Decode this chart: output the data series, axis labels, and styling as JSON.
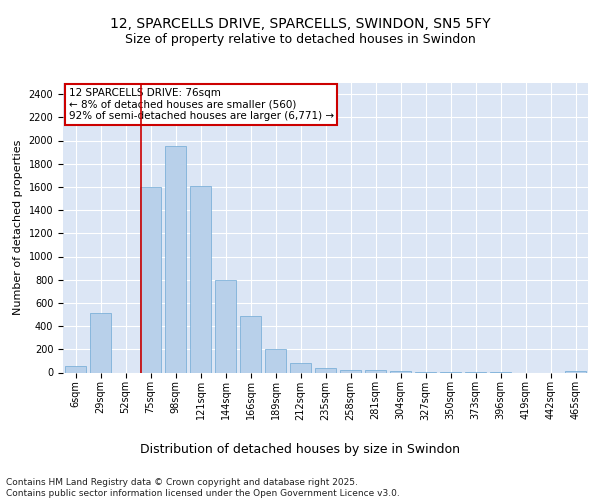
{
  "title_line1": "12, SPARCELLS DRIVE, SPARCELLS, SWINDON, SN5 5FY",
  "title_line2": "Size of property relative to detached houses in Swindon",
  "xlabel": "Distribution of detached houses by size in Swindon",
  "ylabel": "Number of detached properties",
  "categories": [
    "6sqm",
    "29sqm",
    "52sqm",
    "75sqm",
    "98sqm",
    "121sqm",
    "144sqm",
    "166sqm",
    "189sqm",
    "212sqm",
    "235sqm",
    "258sqm",
    "281sqm",
    "304sqm",
    "327sqm",
    "350sqm",
    "373sqm",
    "396sqm",
    "419sqm",
    "442sqm",
    "465sqm"
  ],
  "values": [
    55,
    510,
    0,
    1600,
    1950,
    1610,
    800,
    490,
    200,
    85,
    40,
    25,
    18,
    10,
    5,
    3,
    2,
    1,
    0,
    0,
    15
  ],
  "bar_color": "#b8d0ea",
  "bar_edge_color": "#6ea8d5",
  "background_color": "#dce6f5",
  "grid_color": "#ffffff",
  "vline_color": "#cc0000",
  "vline_x_index": 2.6,
  "annotation_text": "12 SPARCELLS DRIVE: 76sqm\n← 8% of detached houses are smaller (560)\n92% of semi-detached houses are larger (6,771) →",
  "annotation_box_facecolor": "#ffffff",
  "annotation_box_edgecolor": "#cc0000",
  "ylim": [
    0,
    2500
  ],
  "yticks": [
    0,
    200,
    400,
    600,
    800,
    1000,
    1200,
    1400,
    1600,
    1800,
    2000,
    2200,
    2400
  ],
  "footnote": "Contains HM Land Registry data © Crown copyright and database right 2025.\nContains public sector information licensed under the Open Government Licence v3.0.",
  "title_fontsize": 10,
  "subtitle_fontsize": 9,
  "xlabel_fontsize": 9,
  "ylabel_fontsize": 8,
  "tick_fontsize": 7,
  "annotation_fontsize": 7.5,
  "footnote_fontsize": 6.5
}
